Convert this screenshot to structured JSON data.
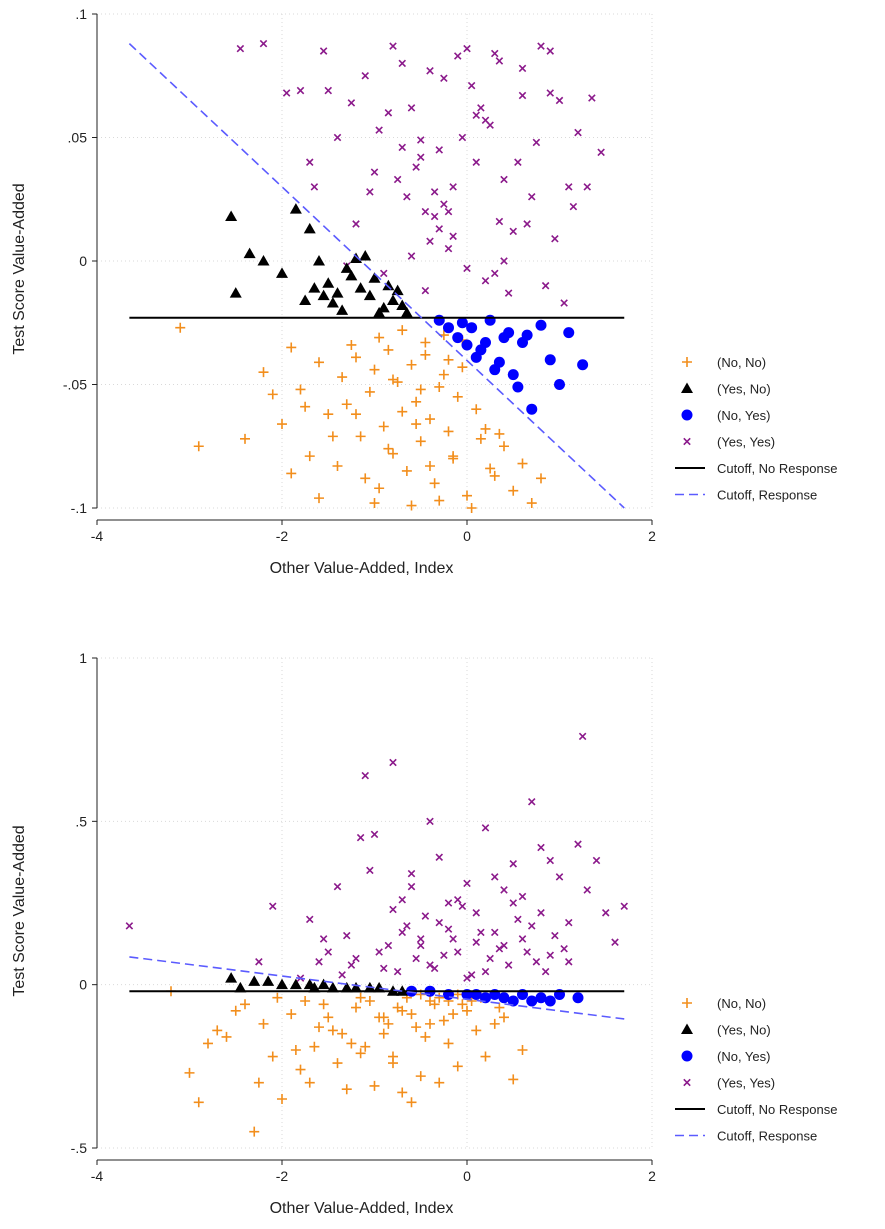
{
  "chart_data": [
    {
      "type": "scatter",
      "xlabel": "Other Value-Added, Index",
      "ylabel": "Test Score Value-Added",
      "xlim": [
        -4,
        2
      ],
      "ylim": [
        -0.1,
        0.1
      ],
      "xticks": [
        -4,
        -2,
        0,
        2
      ],
      "xtick_labels": [
        "-4",
        "-2",
        "0",
        "2"
      ],
      "yticks": [
        -0.1,
        -0.05,
        0,
        0.05,
        0.1
      ],
      "ytick_labels": [
        "-.1",
        "-.05",
        "0",
        ".05",
        ".1"
      ],
      "grid": true,
      "legend_position": "right",
      "series": [
        {
          "name": "(No, No)",
          "marker": "plus",
          "color": "#f28e1c",
          "x": [
            -3.1,
            -2.9,
            -2.4,
            -2.2,
            -2.0,
            -1.9,
            -1.8,
            -1.7,
            -1.6,
            -1.5,
            -1.4,
            -1.35,
            -1.3,
            -1.2,
            -1.15,
            -1.1,
            -1.05,
            -1.0,
            -0.95,
            -0.9,
            -0.85,
            -0.8,
            -0.75,
            -0.7,
            -0.65,
            -0.6,
            -0.55,
            -0.5,
            -0.45,
            -0.4,
            -0.35,
            -0.3,
            -0.25,
            -0.2,
            -0.15,
            -0.1,
            -0.05,
            0.0,
            0.1,
            0.2,
            0.3,
            0.4,
            0.5,
            0.6,
            0.7,
            0.8,
            -1.25,
            -0.95,
            -0.7,
            -0.45,
            -0.25,
            -0.05,
            -1.6,
            -1.45,
            -1.0,
            -0.6,
            -0.3,
            0.05,
            0.25,
            -2.1,
            -1.75,
            -0.85,
            -0.55,
            -0.15,
            0.15,
            -1.9,
            -1.2,
            -0.4,
            0.35,
            -0.8,
            -0.5,
            -0.2
          ],
          "y": [
            -0.027,
            -0.075,
            -0.072,
            -0.045,
            -0.066,
            -0.035,
            -0.052,
            -0.079,
            -0.041,
            -0.062,
            -0.083,
            -0.047,
            -0.058,
            -0.039,
            -0.071,
            -0.088,
            -0.053,
            -0.044,
            -0.092,
            -0.067,
            -0.036,
            -0.078,
            -0.049,
            -0.061,
            -0.085,
            -0.042,
            -0.057,
            -0.073,
            -0.038,
            -0.064,
            -0.09,
            -0.051,
            -0.046,
            -0.069,
            -0.08,
            -0.055,
            -0.043,
            -0.095,
            -0.06,
            -0.068,
            -0.087,
            -0.075,
            -0.093,
            -0.082,
            -0.098,
            -0.088,
            -0.034,
            -0.031,
            -0.028,
            -0.033,
            -0.03,
            -0.032,
            -0.096,
            -0.071,
            -0.098,
            -0.099,
            -0.097,
            -0.1,
            -0.084,
            -0.054,
            -0.059,
            -0.076,
            -0.066,
            -0.079,
            -0.072,
            -0.086,
            -0.062,
            -0.083,
            -0.07,
            -0.048,
            -0.052,
            -0.04
          ]
        },
        {
          "name": "(Yes, No)",
          "marker": "triangle",
          "color": "#000000",
          "x": [
            -2.55,
            -2.5,
            -2.35,
            -2.2,
            -2.0,
            -1.85,
            -1.75,
            -1.7,
            -1.65,
            -1.55,
            -1.5,
            -1.45,
            -1.4,
            -1.3,
            -1.25,
            -1.2,
            -1.15,
            -1.1,
            -1.05,
            -1.0,
            -0.95,
            -0.9,
            -0.85,
            -0.8,
            -0.75,
            -0.7,
            -0.65,
            -1.6,
            -1.35
          ],
          "y": [
            0.018,
            -0.013,
            0.003,
            0.0,
            -0.005,
            0.021,
            -0.016,
            0.013,
            -0.011,
            -0.014,
            -0.009,
            -0.017,
            -0.013,
            -0.003,
            -0.006,
            0.001,
            -0.011,
            0.002,
            -0.014,
            -0.007,
            -0.021,
            -0.019,
            -0.01,
            -0.016,
            -0.012,
            -0.018,
            -0.021,
            0.0,
            -0.02
          ]
        },
        {
          "name": "(No, Yes)",
          "marker": "circle",
          "color": "#0000ff",
          "x": [
            -0.3,
            -0.2,
            -0.1,
            0.0,
            0.05,
            0.1,
            0.15,
            0.2,
            0.25,
            0.3,
            0.35,
            0.45,
            0.5,
            0.55,
            0.6,
            0.65,
            0.7,
            0.8,
            0.9,
            1.0,
            1.1,
            1.25,
            -0.05,
            0.4
          ],
          "y": [
            -0.024,
            -0.027,
            -0.031,
            -0.034,
            -0.027,
            -0.039,
            -0.036,
            -0.033,
            -0.024,
            -0.044,
            -0.041,
            -0.029,
            -0.046,
            -0.051,
            -0.033,
            -0.03,
            -0.06,
            -0.026,
            -0.04,
            -0.05,
            -0.029,
            -0.042,
            -0.025,
            -0.031
          ]
        },
        {
          "name": "(Yes, Yes)",
          "marker": "x",
          "color": "#8b1a8b",
          "x": [
            -2.45,
            -2.2,
            -1.95,
            -1.8,
            -1.65,
            -1.55,
            -1.4,
            -1.25,
            -1.1,
            -0.95,
            -0.8,
            -0.7,
            -0.6,
            -0.5,
            -0.4,
            -0.3,
            -0.2,
            -0.1,
            0.0,
            0.1,
            0.2,
            0.3,
            0.4,
            0.5,
            0.6,
            0.7,
            0.8,
            0.9,
            1.0,
            1.1,
            1.2,
            1.35,
            1.45,
            -1.2,
            -1.0,
            -0.85,
            -0.65,
            -0.45,
            -0.35,
            -0.25,
            -0.15,
            -0.05,
            0.05,
            0.15,
            0.25,
            0.35,
            0.55,
            0.75,
            0.95,
            1.15,
            -0.55,
            -0.75,
            -0.4,
            -0.3,
            -0.2,
            0.0,
            -0.9,
            -1.3,
            -0.6,
            0.2,
            0.4,
            0.65,
            0.85,
            1.05,
            -0.15,
            0.45,
            -0.35,
            0.3,
            -0.5,
            -1.5,
            -1.7,
            -0.7,
            0.1,
            0.6,
            -0.25,
            0.35,
            0.9,
            -1.05,
            1.3,
            -0.45
          ],
          "y": [
            0.086,
            0.088,
            0.068,
            0.069,
            0.03,
            0.085,
            0.05,
            0.064,
            0.075,
            0.053,
            0.087,
            0.08,
            0.062,
            0.049,
            0.077,
            0.045,
            0.02,
            0.083,
            0.086,
            0.04,
            0.057,
            0.084,
            0.033,
            0.012,
            0.078,
            0.026,
            0.087,
            0.085,
            0.065,
            0.03,
            0.052,
            0.066,
            0.044,
            0.015,
            0.036,
            0.06,
            0.026,
            0.02,
            0.018,
            0.023,
            0.03,
            0.05,
            0.071,
            0.062,
            0.055,
            0.016,
            0.04,
            0.048,
            0.009,
            0.022,
            0.038,
            0.033,
            0.008,
            0.013,
            0.005,
            -0.003,
            -0.005,
            -0.002,
            0.002,
            -0.008,
            0.0,
            0.015,
            -0.01,
            -0.017,
            0.01,
            -0.013,
            0.028,
            -0.005,
            0.042,
            0.069,
            0.04,
            0.046,
            0.059,
            0.067,
            0.074,
            0.081,
            0.068,
            0.028,
            0.03,
            -0.012
          ]
        }
      ],
      "lines": [
        {
          "name": "Cutoff, No Response",
          "style": "solid",
          "color": "#000000",
          "x": [
            -3.65,
            1.7
          ],
          "y": [
            -0.023,
            -0.023
          ]
        },
        {
          "name": "Cutoff, Response",
          "style": "dashed",
          "color": "#5b5bff",
          "x": [
            -3.65,
            1.7
          ],
          "y": [
            0.088,
            -0.1
          ]
        }
      ]
    },
    {
      "type": "scatter",
      "xlabel": "Other Value-Added, Index",
      "ylabel": "Test Score Value-Added",
      "xlim": [
        -4,
        2
      ],
      "ylim": [
        -0.5,
        1
      ],
      "xticks": [
        -4,
        -2,
        0,
        2
      ],
      "xtick_labels": [
        "-4",
        "-2",
        "0",
        "2"
      ],
      "yticks": [
        -0.5,
        0,
        0.5,
        1
      ],
      "ytick_labels": [
        "-.5",
        "0",
        ".5",
        "1"
      ],
      "grid": true,
      "legend_position": "right",
      "series": [
        {
          "name": "(No, No)",
          "marker": "plus",
          "color": "#f28e1c",
          "x": [
            -3.2,
            -3.0,
            -2.9,
            -2.8,
            -2.7,
            -2.6,
            -2.5,
            -2.4,
            -2.3,
            -2.25,
            -2.2,
            -2.1,
            -2.0,
            -1.9,
            -1.8,
            -1.7,
            -1.6,
            -1.5,
            -1.4,
            -1.3,
            -1.2,
            -1.1,
            -1.0,
            -0.9,
            -0.8,
            -0.7,
            -0.6,
            -0.5,
            -0.4,
            -0.3,
            -0.2,
            -0.1,
            0.0,
            0.1,
            0.2,
            0.3,
            0.4,
            0.5,
            0.6,
            -1.75,
            -1.55,
            -1.35,
            -1.15,
            -0.95,
            -0.75,
            -0.55,
            -0.35,
            -0.15,
            -1.25,
            -1.05,
            -0.85,
            -0.65,
            -0.45,
            -0.25,
            -0.05,
            -1.85,
            -1.45,
            -0.6,
            -0.4,
            -0.2,
            0.15,
            0.35,
            -2.05,
            -1.65,
            -0.9,
            -0.7,
            -0.5,
            -0.3,
            -0.1,
            0.05,
            -1.15,
            -0.8
          ],
          "y": [
            -0.02,
            -0.27,
            -0.36,
            -0.18,
            -0.14,
            -0.16,
            -0.08,
            -0.06,
            -0.45,
            -0.3,
            -0.12,
            -0.22,
            -0.35,
            -0.09,
            -0.26,
            -0.3,
            -0.13,
            -0.1,
            -0.24,
            -0.32,
            -0.07,
            -0.19,
            -0.31,
            -0.15,
            -0.22,
            -0.33,
            -0.36,
            -0.28,
            -0.05,
            -0.3,
            -0.18,
            -0.25,
            -0.08,
            -0.14,
            -0.22,
            -0.12,
            -0.1,
            -0.29,
            -0.2,
            -0.05,
            -0.06,
            -0.15,
            -0.04,
            -0.1,
            -0.07,
            -0.13,
            -0.06,
            -0.09,
            -0.18,
            -0.05,
            -0.12,
            -0.04,
            -0.16,
            -0.11,
            -0.06,
            -0.2,
            -0.14,
            -0.09,
            -0.12,
            -0.05,
            -0.04,
            -0.07,
            -0.04,
            -0.19,
            -0.1,
            -0.08,
            -0.03,
            -0.04,
            -0.03,
            -0.05,
            -0.21,
            -0.24
          ]
        },
        {
          "name": "(Yes, No)",
          "marker": "triangle",
          "color": "#000000",
          "x": [
            -2.55,
            -2.45,
            -2.3,
            -2.15,
            -2.0,
            -1.85,
            -1.7,
            -1.55,
            -1.45,
            -1.3,
            -1.2,
            -1.05,
            -0.95,
            -0.8,
            -0.7,
            -1.65
          ],
          "y": [
            0.02,
            -0.01,
            0.01,
            0.01,
            0.0,
            0.0,
            0.0,
            0.0,
            -0.01,
            -0.01,
            -0.01,
            -0.01,
            -0.01,
            -0.02,
            -0.02,
            -0.01
          ]
        },
        {
          "name": "(No, Yes)",
          "marker": "circle",
          "color": "#0000ff",
          "x": [
            -0.6,
            -0.4,
            -0.2,
            0.0,
            0.1,
            0.2,
            0.3,
            0.4,
            0.5,
            0.6,
            0.7,
            0.8,
            0.9,
            1.0,
            1.2
          ],
          "y": [
            -0.02,
            -0.02,
            -0.03,
            -0.03,
            -0.03,
            -0.04,
            -0.03,
            -0.04,
            -0.05,
            -0.03,
            -0.05,
            -0.04,
            -0.05,
            -0.03,
            -0.04
          ]
        },
        {
          "name": "(Yes, Yes)",
          "marker": "x",
          "color": "#8b1a8b",
          "x": [
            -3.65,
            -2.25,
            -2.1,
            -1.8,
            -1.7,
            -1.55,
            -1.4,
            -1.3,
            -1.2,
            -1.1,
            -1.0,
            -0.9,
            -0.8,
            -0.7,
            -0.6,
            -0.5,
            -0.4,
            -0.3,
            -0.2,
            -0.1,
            0.0,
            0.1,
            0.2,
            0.3,
            0.4,
            0.5,
            0.6,
            0.7,
            0.8,
            0.9,
            1.0,
            1.1,
            1.2,
            1.3,
            1.4,
            1.5,
            1.6,
            1.7,
            -1.25,
            -1.05,
            -0.85,
            -0.65,
            -0.45,
            -0.25,
            -0.05,
            0.15,
            0.35,
            0.55,
            0.75,
            0.95,
            -0.95,
            -0.75,
            -0.55,
            -0.35,
            -0.15,
            0.05,
            0.25,
            0.45,
            0.65,
            0.85,
            1.05,
            -1.5,
            -1.15,
            -0.6,
            -0.4,
            -0.2,
            0.0,
            0.2,
            0.4,
            0.6,
            0.8,
            -0.7,
            -0.3,
            0.1,
            0.5,
            0.9,
            -1.6,
            -1.35,
            -0.8,
            0.3,
            0.7,
            1.1,
            1.25,
            -0.5,
            -0.1
          ],
          "y": [
            0.18,
            0.07,
            0.24,
            0.02,
            0.2,
            0.14,
            0.3,
            0.15,
            0.08,
            0.64,
            0.46,
            0.05,
            0.68,
            0.26,
            0.34,
            0.14,
            0.5,
            0.39,
            0.25,
            0.1,
            0.31,
            0.22,
            0.48,
            0.16,
            0.12,
            0.37,
            0.27,
            0.56,
            0.42,
            0.38,
            0.33,
            0.19,
            0.43,
            0.29,
            0.38,
            0.22,
            0.13,
            0.24,
            0.06,
            0.35,
            0.12,
            0.18,
            0.21,
            0.09,
            0.24,
            0.16,
            0.11,
            0.2,
            0.07,
            0.15,
            0.1,
            0.04,
            0.08,
            0.05,
            0.14,
            0.03,
            0.08,
            0.06,
            0.1,
            0.04,
            0.11,
            0.1,
            0.45,
            0.3,
            0.06,
            0.17,
            0.02,
            0.04,
            0.29,
            0.14,
            0.22,
            0.16,
            0.19,
            0.13,
            0.25,
            0.09,
            0.07,
            0.03,
            0.23,
            0.33,
            0.18,
            0.07,
            0.76,
            0.12,
            0.26
          ]
        }
      ],
      "lines": [
        {
          "name": "Cutoff, No Response",
          "style": "solid",
          "color": "#000000",
          "x": [
            -3.65,
            1.7
          ],
          "y": [
            -0.02,
            -0.02
          ]
        },
        {
          "name": "Cutoff, Response",
          "style": "dashed",
          "color": "#5b5bff",
          "x": [
            -3.65,
            1.7
          ],
          "y": [
            0.085,
            -0.105
          ]
        }
      ]
    }
  ],
  "legend": {
    "items": [
      {
        "label": "(No, No)",
        "kind": "plus",
        "color": "#f28e1c"
      },
      {
        "label": "(Yes, No)",
        "kind": "triangle",
        "color": "#000000"
      },
      {
        "label": "(No, Yes)",
        "kind": "circle",
        "color": "#0000ff"
      },
      {
        "label": "(Yes, Yes)",
        "kind": "x",
        "color": "#8b1a8b"
      },
      {
        "label": "Cutoff, No Response",
        "kind": "solid-line",
        "color": "#000000"
      },
      {
        "label": "Cutoff, Response",
        "kind": "dashed-line",
        "color": "#5b5bff"
      }
    ]
  }
}
